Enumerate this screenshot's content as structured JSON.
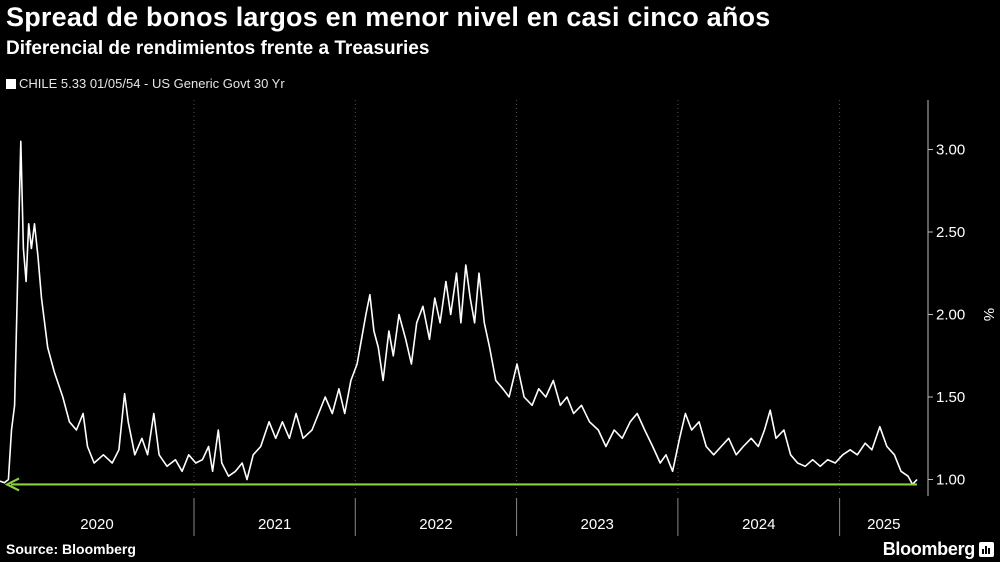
{
  "header": {
    "title": "Spread de bonos largos en menor nivel en casi cinco años",
    "subtitle": "Diferencial de rendimientos frente a Treasuries"
  },
  "footer": {
    "source": "Source: Bloomberg",
    "brand": "Bloomberg"
  },
  "colors": {
    "background": "#000000",
    "series": "#ffffff",
    "arrow": "#8bd13e",
    "grid": "#555555"
  },
  "chart_data": {
    "type": "line",
    "title": "Spread de bonos largos en menor nivel en casi cinco años",
    "subtitle": "Diferencial de rendimientos frente a Treasuries",
    "ylabel": "%",
    "ylim": [
      0.9,
      3.3
    ],
    "xlim": [
      "2019-10-20",
      "2025-07-20"
    ],
    "yticks": [
      {
        "value": 1.0,
        "label": "1.00"
      },
      {
        "value": 1.5,
        "label": "1.50"
      },
      {
        "value": 2.0,
        "label": "2.00"
      },
      {
        "value": 2.5,
        "label": "2.50"
      },
      {
        "value": 3.0,
        "label": "3.00"
      }
    ],
    "year_labels": [
      "2020",
      "2021",
      "2022",
      "2023",
      "2024",
      "2025"
    ],
    "year_boundaries": [
      "2021-01-01",
      "2022-01-01",
      "2023-01-01",
      "2024-01-01",
      "2025-01-01"
    ],
    "legend": "top-left",
    "grid": "vertical dotted",
    "series": [
      {
        "name": "CHILE 5.33 01/05/54 - US Generic Govt 30 Yr",
        "points": [
          [
            "2019-10-20",
            0.99
          ],
          [
            "2019-10-30",
            0.98
          ],
          [
            "2019-11-08",
            1.0
          ],
          [
            "2019-11-15",
            1.3
          ],
          [
            "2019-11-22",
            1.45
          ],
          [
            "2019-11-28",
            2.1
          ],
          [
            "2019-12-03",
            2.7
          ],
          [
            "2019-12-06",
            3.05
          ],
          [
            "2019-12-12",
            2.4
          ],
          [
            "2019-12-18",
            2.2
          ],
          [
            "2019-12-24",
            2.55
          ],
          [
            "2019-12-30",
            2.4
          ],
          [
            "2020-01-06",
            2.55
          ],
          [
            "2020-01-14",
            2.35
          ],
          [
            "2020-01-22",
            2.1
          ],
          [
            "2020-02-05",
            1.8
          ],
          [
            "2020-02-20",
            1.65
          ],
          [
            "2020-03-10",
            1.5
          ],
          [
            "2020-03-25",
            1.35
          ],
          [
            "2020-04-10",
            1.3
          ],
          [
            "2020-04-25",
            1.4
          ],
          [
            "2020-05-05",
            1.2
          ],
          [
            "2020-05-20",
            1.1
          ],
          [
            "2020-06-10",
            1.15
          ],
          [
            "2020-06-30",
            1.1
          ],
          [
            "2020-07-15",
            1.18
          ],
          [
            "2020-07-28",
            1.52
          ],
          [
            "2020-08-05",
            1.35
          ],
          [
            "2020-08-20",
            1.15
          ],
          [
            "2020-09-05",
            1.25
          ],
          [
            "2020-09-18",
            1.15
          ],
          [
            "2020-10-02",
            1.4
          ],
          [
            "2020-10-14",
            1.15
          ],
          [
            "2020-11-01",
            1.08
          ],
          [
            "2020-11-20",
            1.12
          ],
          [
            "2020-12-05",
            1.05
          ],
          [
            "2020-12-20",
            1.15
          ],
          [
            "2021-01-05",
            1.1
          ],
          [
            "2021-01-20",
            1.12
          ],
          [
            "2021-02-03",
            1.2
          ],
          [
            "2021-02-12",
            1.05
          ],
          [
            "2021-02-25",
            1.3
          ],
          [
            "2021-03-05",
            1.1
          ],
          [
            "2021-03-20",
            1.02
          ],
          [
            "2021-04-05",
            1.05
          ],
          [
            "2021-04-20",
            1.1
          ],
          [
            "2021-05-01",
            1.0
          ],
          [
            "2021-05-15",
            1.15
          ],
          [
            "2021-06-01",
            1.2
          ],
          [
            "2021-06-20",
            1.35
          ],
          [
            "2021-07-05",
            1.25
          ],
          [
            "2021-07-20",
            1.35
          ],
          [
            "2021-08-05",
            1.25
          ],
          [
            "2021-08-20",
            1.4
          ],
          [
            "2021-09-05",
            1.25
          ],
          [
            "2021-09-25",
            1.3
          ],
          [
            "2021-10-10",
            1.4
          ],
          [
            "2021-10-25",
            1.5
          ],
          [
            "2021-11-10",
            1.4
          ],
          [
            "2021-11-25",
            1.55
          ],
          [
            "2021-12-08",
            1.4
          ],
          [
            "2021-12-22",
            1.6
          ],
          [
            "2022-01-05",
            1.7
          ],
          [
            "2022-01-15",
            1.85
          ],
          [
            "2022-01-25",
            2.0
          ],
          [
            "2022-02-03",
            2.12
          ],
          [
            "2022-02-12",
            1.9
          ],
          [
            "2022-02-22",
            1.8
          ],
          [
            "2022-03-05",
            1.6
          ],
          [
            "2022-03-18",
            1.9
          ],
          [
            "2022-03-28",
            1.75
          ],
          [
            "2022-04-10",
            2.0
          ],
          [
            "2022-04-25",
            1.85
          ],
          [
            "2022-05-08",
            1.7
          ],
          [
            "2022-05-20",
            1.95
          ],
          [
            "2022-06-03",
            2.05
          ],
          [
            "2022-06-18",
            1.85
          ],
          [
            "2022-06-30",
            2.1
          ],
          [
            "2022-07-12",
            1.95
          ],
          [
            "2022-07-25",
            2.2
          ],
          [
            "2022-08-05",
            2.0
          ],
          [
            "2022-08-18",
            2.25
          ],
          [
            "2022-08-28",
            1.95
          ],
          [
            "2022-09-08",
            2.3
          ],
          [
            "2022-09-18",
            2.1
          ],
          [
            "2022-09-28",
            1.95
          ],
          [
            "2022-10-08",
            2.25
          ],
          [
            "2022-10-20",
            1.95
          ],
          [
            "2022-11-01",
            1.8
          ],
          [
            "2022-11-15",
            1.6
          ],
          [
            "2022-12-01",
            1.55
          ],
          [
            "2022-12-15",
            1.5
          ],
          [
            "2023-01-02",
            1.7
          ],
          [
            "2023-01-18",
            1.5
          ],
          [
            "2023-02-05",
            1.45
          ],
          [
            "2023-02-20",
            1.55
          ],
          [
            "2023-03-08",
            1.5
          ],
          [
            "2023-03-25",
            1.6
          ],
          [
            "2023-04-10",
            1.45
          ],
          [
            "2023-04-25",
            1.5
          ],
          [
            "2023-05-10",
            1.4
          ],
          [
            "2023-05-28",
            1.45
          ],
          [
            "2023-06-15",
            1.35
          ],
          [
            "2023-07-05",
            1.3
          ],
          [
            "2023-07-22",
            1.2
          ],
          [
            "2023-08-10",
            1.3
          ],
          [
            "2023-08-28",
            1.25
          ],
          [
            "2023-09-15",
            1.35
          ],
          [
            "2023-10-01",
            1.4
          ],
          [
            "2023-10-18",
            1.3
          ],
          [
            "2023-11-05",
            1.2
          ],
          [
            "2023-11-22",
            1.1
          ],
          [
            "2023-12-05",
            1.15
          ],
          [
            "2023-12-20",
            1.05
          ],
          [
            "2024-01-05",
            1.25
          ],
          [
            "2024-01-18",
            1.4
          ],
          [
            "2024-02-01",
            1.3
          ],
          [
            "2024-02-18",
            1.35
          ],
          [
            "2024-03-05",
            1.2
          ],
          [
            "2024-03-22",
            1.15
          ],
          [
            "2024-04-08",
            1.2
          ],
          [
            "2024-04-25",
            1.25
          ],
          [
            "2024-05-12",
            1.15
          ],
          [
            "2024-05-28",
            1.2
          ],
          [
            "2024-06-15",
            1.25
          ],
          [
            "2024-07-01",
            1.2
          ],
          [
            "2024-07-15",
            1.3
          ],
          [
            "2024-07-28",
            1.42
          ],
          [
            "2024-08-10",
            1.25
          ],
          [
            "2024-08-28",
            1.3
          ],
          [
            "2024-09-12",
            1.15
          ],
          [
            "2024-09-28",
            1.1
          ],
          [
            "2024-10-15",
            1.08
          ],
          [
            "2024-11-01",
            1.12
          ],
          [
            "2024-11-18",
            1.08
          ],
          [
            "2024-12-05",
            1.12
          ],
          [
            "2024-12-22",
            1.1
          ],
          [
            "2025-01-08",
            1.15
          ],
          [
            "2025-01-25",
            1.18
          ],
          [
            "2025-02-10",
            1.15
          ],
          [
            "2025-02-28",
            1.22
          ],
          [
            "2025-03-15",
            1.18
          ],
          [
            "2025-04-02",
            1.32
          ],
          [
            "2025-04-18",
            1.2
          ],
          [
            "2025-05-05",
            1.15
          ],
          [
            "2025-05-20",
            1.05
          ],
          [
            "2025-06-05",
            1.02
          ],
          [
            "2025-06-15",
            0.97
          ],
          [
            "2025-06-25",
            1.0
          ]
        ]
      }
    ],
    "annotations": [
      {
        "type": "horizontal-arrow",
        "y": 0.97,
        "from": "2025-06-25",
        "to": "2019-11-05",
        "color": "#8bd13e"
      }
    ]
  }
}
